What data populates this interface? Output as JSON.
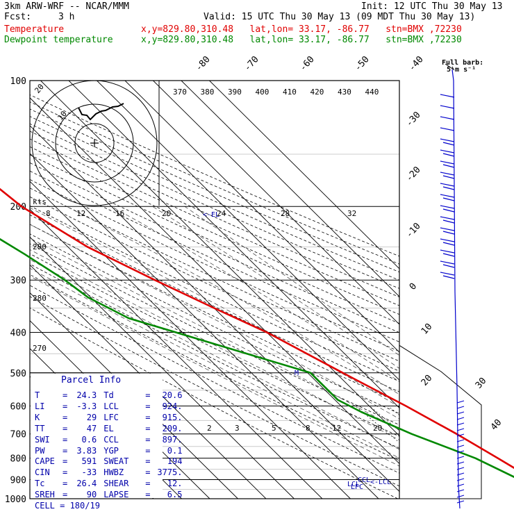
{
  "header": {
    "model": "3km ARW-WRF -- NCAR/MMM",
    "init": "Init: 12 UTC Thu 30 May 13",
    "fcst_label": "Fcst:",
    "fcst_value": "3 h",
    "valid": "Valid: 15 UTC Thu 30 May 13 (09 MDT Thu 30 May 13)",
    "temperature_label": "Temperature",
    "dewpoint_label": "Dewpoint temperature",
    "location": "x,y=829.80,310.48   lat,lon= 33.17, -86.77   stn=BMX ,72230"
  },
  "wind_key": {
    "title": "Full barb:",
    "value": "5 m s⁻¹"
  },
  "hodograph": {
    "kts_label": "kts",
    "ring_labels": [
      "10",
      "20"
    ]
  },
  "colors": {
    "temperature": "#e00000",
    "dewpoint": "#008800",
    "text_blue": "#0000aa",
    "barb": "#0000cc"
  },
  "parcel": {
    "title": "Parcel Info",
    "rows": [
      [
        "T",
        "24.3",
        "Td",
        "20.6"
      ],
      [
        "LI",
        "-3.3",
        "LCL",
        "924."
      ],
      [
        "K",
        "29",
        "LFC",
        "915."
      ],
      [
        "TT",
        "47",
        "EL",
        "209."
      ],
      [
        "SWI",
        "0.6",
        "CCL",
        "897."
      ],
      [
        "PW",
        "3.83",
        "YGP",
        "0.1"
      ],
      [
        "CAPE",
        "591",
        "SWEAT",
        "194"
      ],
      [
        "CIN",
        "-33",
        "HWBZ",
        "3775."
      ],
      [
        "Tc",
        "26.4",
        "SHEAR",
        "12."
      ],
      [
        "SREH",
        "90",
        "LAPSE",
        "6.5"
      ]
    ],
    "cell": "CELL = 180/19"
  },
  "chart_data": {
    "type": "line",
    "subtype": "skew-T log-p sounding",
    "pressure_ticks": [
      100,
      200,
      300,
      400,
      500,
      600,
      700,
      800,
      900,
      1000
    ],
    "top_isotherm_labels": [
      "-80",
      "-70",
      "-60",
      "-50",
      "-40"
    ],
    "right_isotherm_labels": [
      "-30",
      "-20",
      "-10",
      "0",
      "10",
      "20",
      "30",
      "40"
    ],
    "theta_e_labels": [
      "370",
      "380",
      "390",
      "400",
      "410",
      "420",
      "430",
      "440"
    ],
    "hodo_speed_labels": [
      "8",
      "12",
      "16",
      "20",
      "24",
      "28",
      "32"
    ],
    "theta_labels": [
      "290",
      "280",
      "270"
    ],
    "mixing_ratio_labels": [
      "2",
      "3",
      "5",
      "8",
      "12",
      "20"
    ],
    "level_markers": [
      "<-EL",
      "M",
      "CCL",
      "LFC",
      "<-LCL",
      "LCL"
    ],
    "series": [
      {
        "name": "Temperature",
        "color": "#e00000",
        "pressure": [
          100,
          150,
          175,
          200,
          250,
          300,
          350,
          400,
          500,
          600,
          700,
          800,
          900,
          950,
          1000
        ],
        "temperature_c": [
          -57,
          -61,
          -64,
          -62,
          -53,
          -41,
          -30,
          -20,
          -7.5,
          3,
          11,
          17,
          22,
          23,
          24.3
        ]
      },
      {
        "name": "Dewpoint temperature",
        "color": "#008800",
        "pressure": [
          100,
          150,
          200,
          230,
          260,
          300,
          330,
          370,
          420,
          500,
          580,
          620,
          700,
          800,
          900,
          950,
          1000
        ],
        "temperature_c": [
          -76,
          -85,
          -86,
          -83,
          -78,
          -73,
          -71,
          -64,
          -45,
          -19,
          -19,
          -15,
          -5,
          9,
          17,
          20.6,
          20.6
        ]
      }
    ]
  }
}
